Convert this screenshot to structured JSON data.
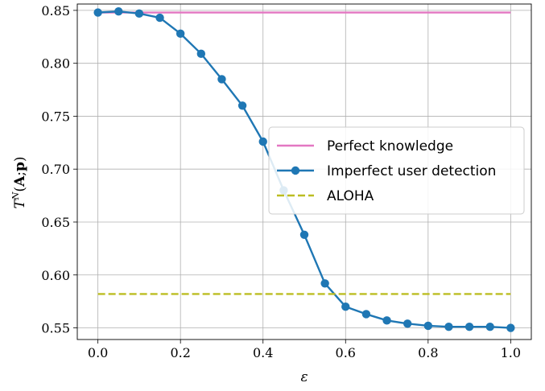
{
  "chart_data": {
    "type": "line",
    "xlabel": "ε",
    "ylabel": "T^N(A;p)",
    "xlim": [
      -0.05,
      1.05
    ],
    "ylim": [
      0.539,
      0.856
    ],
    "xticks": [
      0.0,
      0.2,
      0.4,
      0.6,
      0.8,
      1.0
    ],
    "xtick_labels": [
      "0.0",
      "0.2",
      "0.4",
      "0.6",
      "0.8",
      "1.0"
    ],
    "yticks": [
      0.55,
      0.6,
      0.65,
      0.7,
      0.75,
      0.8,
      0.85
    ],
    "ytick_labels": [
      "0.55",
      "0.60",
      "0.65",
      "0.70",
      "0.75",
      "0.80",
      "0.85"
    ],
    "grid": true,
    "legend_position": "center-right",
    "series": [
      {
        "name": "Perfect knowledge",
        "color": "#e377c2",
        "style": "solid",
        "marker": "none",
        "x": [
          0.0,
          1.0
        ],
        "values": [
          0.848,
          0.848
        ]
      },
      {
        "name": "Imperfect user detection",
        "color": "#1f77b4",
        "style": "solid",
        "marker": "circle",
        "x": [
          0.0,
          0.05,
          0.1,
          0.15,
          0.2,
          0.25,
          0.3,
          0.35,
          0.4,
          0.45,
          0.5,
          0.55,
          0.6,
          0.65,
          0.7,
          0.75,
          0.8,
          0.85,
          0.9,
          0.95,
          1.0
        ],
        "values": [
          0.848,
          0.849,
          0.847,
          0.843,
          0.828,
          0.809,
          0.785,
          0.76,
          0.726,
          0.68,
          0.638,
          0.592,
          0.57,
          0.563,
          0.557,
          0.554,
          0.552,
          0.551,
          0.551,
          0.551,
          0.55
        ]
      },
      {
        "name": "ALOHA",
        "color": "#bcbd22",
        "style": "dashed",
        "marker": "none",
        "x": [
          0.0,
          1.0
        ],
        "values": [
          0.582,
          0.582
        ]
      }
    ]
  }
}
